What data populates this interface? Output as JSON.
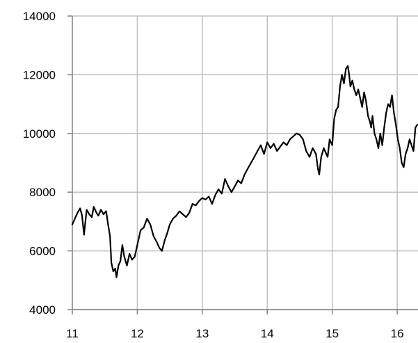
{
  "chart_data": {
    "type": "line",
    "title": "",
    "xlabel": "",
    "ylabel": "",
    "xlim": [
      11,
      16.32
    ],
    "ylim": [
      4000,
      14000
    ],
    "x_ticks": [
      "11",
      "12",
      "13",
      "14",
      "15",
      "16"
    ],
    "x_tick_values": [
      11,
      12,
      13,
      14,
      15,
      16
    ],
    "y_ticks": [
      "4000",
      "6000",
      "8000",
      "10000",
      "12000",
      "14000"
    ],
    "y_tick_values": [
      4000,
      6000,
      8000,
      10000,
      12000,
      14000
    ],
    "grid": true,
    "legend": "none",
    "colors": {
      "line": "#000000",
      "grid": "#bfbfbf",
      "axis": "#808080"
    },
    "series": [
      {
        "x": [
          11.0,
          11.04,
          11.08,
          11.12,
          11.15,
          11.18,
          11.22,
          11.26,
          11.3,
          11.33,
          11.37,
          11.4,
          11.44,
          11.48,
          11.52,
          11.55,
          11.58,
          11.6,
          11.63,
          11.66,
          11.68,
          11.71,
          11.74,
          11.77,
          11.8,
          11.84,
          11.88,
          11.92,
          11.96,
          12.0,
          12.05,
          12.1,
          12.15,
          12.2,
          12.25,
          12.3,
          12.34,
          12.38,
          12.42,
          12.46,
          12.5,
          12.55,
          12.6,
          12.65,
          12.7,
          12.75,
          12.8,
          12.85,
          12.9,
          12.95,
          13.0,
          13.05,
          13.1,
          13.15,
          13.2,
          13.25,
          13.3,
          13.35,
          13.4,
          13.45,
          13.5,
          13.55,
          13.6,
          13.65,
          13.7,
          13.75,
          13.8,
          13.85,
          13.9,
          13.95,
          14.0,
          14.05,
          14.1,
          14.15,
          14.2,
          14.25,
          14.3,
          14.35,
          14.4,
          14.45,
          14.5,
          14.55,
          14.6,
          14.65,
          14.7,
          14.75,
          14.78,
          14.8,
          14.83,
          14.87,
          14.9,
          14.93,
          14.96,
          15.0,
          15.03,
          15.06,
          15.09,
          15.12,
          15.15,
          15.18,
          15.21,
          15.24,
          15.26,
          15.28,
          15.31,
          15.34,
          15.37,
          15.4,
          15.43,
          15.46,
          15.49,
          15.52,
          15.55,
          15.58,
          15.6,
          15.62,
          15.65,
          15.68,
          15.71,
          15.74,
          15.77,
          15.8,
          15.83,
          15.86,
          15.89,
          15.92,
          15.95,
          15.98,
          16.01,
          16.04,
          16.07,
          16.1,
          16.13,
          16.16,
          16.19,
          16.22,
          16.25,
          16.28,
          16.31
        ],
        "values": [
          6900,
          7100,
          7300,
          7450,
          7200,
          6550,
          7400,
          7250,
          7150,
          7500,
          7300,
          7200,
          7400,
          7250,
          7350,
          6900,
          6500,
          5600,
          5300,
          5400,
          5100,
          5500,
          5650,
          6200,
          5800,
          5500,
          5900,
          5700,
          5800,
          6200,
          6700,
          6800,
          7100,
          6900,
          6500,
          6300,
          6100,
          6000,
          6350,
          6600,
          6900,
          7100,
          7200,
          7350,
          7250,
          7150,
          7300,
          7600,
          7550,
          7700,
          7800,
          7750,
          7850,
          7600,
          7900,
          8100,
          7950,
          8450,
          8200,
          8000,
          8200,
          8400,
          8300,
          8600,
          8800,
          9000,
          9200,
          9400,
          9600,
          9300,
          9700,
          9500,
          9650,
          9400,
          9550,
          9700,
          9600,
          9800,
          9900,
          10000,
          9950,
          9800,
          9400,
          9200,
          9500,
          9300,
          8800,
          8600,
          9200,
          9500,
          9350,
          9200,
          9800,
          9600,
          10500,
          10800,
          10900,
          11600,
          12000,
          11700,
          12200,
          12300,
          12000,
          11600,
          11800,
          11500,
          11300,
          11500,
          11200,
          10900,
          11400,
          11100,
          10600,
          10400,
          10200,
          10600,
          10000,
          9800,
          9500,
          10000,
          9600,
          10200,
          10700,
          11000,
          10900,
          11300,
          10700,
          10300,
          9800,
          9500,
          9000,
          8850,
          9300,
          9500,
          9800,
          9600,
          9400,
          10200,
          10300
        ]
      }
    ]
  }
}
